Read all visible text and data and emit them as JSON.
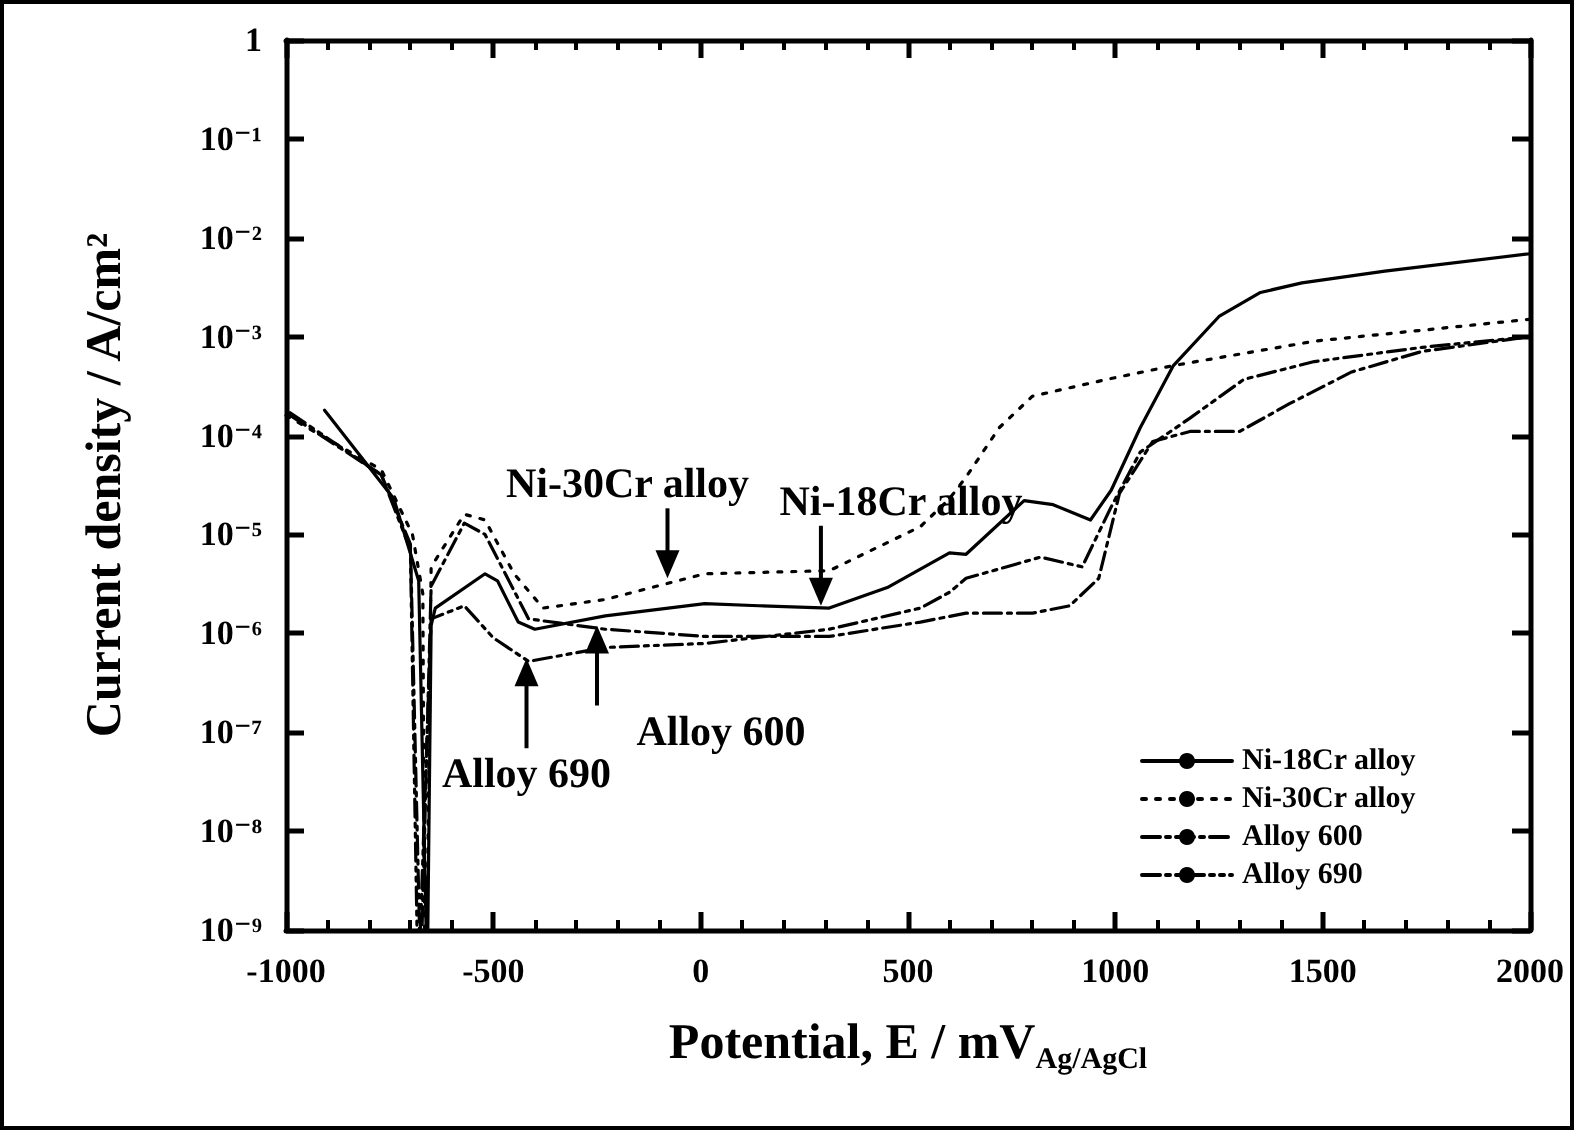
{
  "chart_data": {
    "type": "line",
    "xlabel": "Potential, E / mV$_{Ag/AgCl}$",
    "ylabel": "Current density / A/cm²",
    "xlim": [
      -1000,
      2000
    ],
    "xticks": [
      -1000,
      -500,
      0,
      500,
      1000,
      1500,
      2000
    ],
    "ylim": [
      1e-09,
      1
    ],
    "log": "y",
    "yticks": [
      {
        "value": 1e-09,
        "label": "10⁻⁹"
      },
      {
        "value": 1e-08,
        "label": "10⁻⁸"
      },
      {
        "value": 1e-07,
        "label": "10⁻⁷"
      },
      {
        "value": 1e-06,
        "label": "10⁻⁶"
      },
      {
        "value": 1e-05,
        "label": "10⁻⁵"
      },
      {
        "value": 0.0001,
        "label": "10⁻⁴"
      },
      {
        "value": 0.001,
        "label": "10⁻³"
      },
      {
        "value": 0.01,
        "label": "10⁻²"
      },
      {
        "value": 0.1,
        "label": "10⁻¹"
      },
      {
        "value": 1,
        "label": "1"
      }
    ],
    "grid": false,
    "legend": "bottom right",
    "marker": "none",
    "series": [
      {
        "name": "Ni-18Cr alloy",
        "color": "#000000",
        "line_style": "solid",
        "x": [
          -907,
          -740,
          -680,
          -662,
          -658,
          -650,
          -640,
          -520,
          -490,
          -440,
          -400,
          -230,
          10,
          140,
          310,
          450,
          600,
          640,
          780,
          850,
          940,
          990,
          1060,
          1140,
          1250,
          1350,
          1450,
          1650,
          2000
        ],
        "values": [
          0.00018,
          2.3e-05,
          3.4e-06,
          1e-09,
          1e-09,
          1.2e-06,
          1.8e-06,
          4e-06,
          3.4e-06,
          1.3e-06,
          1.1e-06,
          1.5e-06,
          2e-06,
          1.9e-06,
          1.8e-06,
          2.9e-06,
          6.5e-06,
          6.3e-06,
          2.2e-05,
          2e-05,
          1.4e-05,
          2.8e-05,
          0.00012,
          0.00051,
          0.0016,
          0.0028,
          0.0035,
          0.0046,
          0.0069
        ]
      },
      {
        "name": "Ni-30Cr alloy",
        "color": "#000000",
        "line_style": "dotted",
        "x": [
          -1000,
          -770,
          -695,
          -670,
          -666,
          -660,
          -650,
          -570,
          -520,
          -450,
          -380,
          -230,
          10,
          310,
          530,
          600,
          640,
          720,
          800,
          980,
          1140,
          1480,
          2000
        ],
        "values": [
          0.00016,
          4.5e-05,
          1e-05,
          2.5e-06,
          1e-09,
          1e-09,
          4.7e-06,
          1.6e-05,
          1.4e-05,
          4e-06,
          1.8e-06,
          2.2e-06,
          4e-06,
          4.3e-06,
          1.2e-05,
          2.3e-05,
          3.8e-05,
          0.00012,
          0.00025,
          0.00037,
          0.00051,
          0.0009,
          0.0015
        ]
      },
      {
        "name": "Alloy 600",
        "color": "#000000",
        "line_style": "dashdot",
        "x": [
          -990,
          -770,
          -700,
          -678,
          -672,
          -650,
          -570,
          -520,
          -415,
          -230,
          10,
          310,
          530,
          640,
          800,
          890,
          960,
          1010,
          1090,
          1180,
          1300,
          1420,
          1570,
          1740,
          2000
        ],
        "values": [
          0.00016,
          4e-05,
          8e-06,
          1e-09,
          1e-09,
          3e-06,
          1.3e-05,
          1e-05,
          1.4e-06,
          1.1e-06,
          9.3e-07,
          9.3e-07,
          1.3e-06,
          1.6e-06,
          1.6e-06,
          1.9e-06,
          3.6e-06,
          2.6e-05,
          8.7e-05,
          0.00011,
          0.00011,
          0.00021,
          0.00044,
          0.00071,
          0.001
        ]
      },
      {
        "name": "Alloy 690",
        "color": "#000000",
        "line_style": "dashdotdot",
        "x": [
          -990,
          -770,
          -700,
          -684,
          -676,
          -650,
          -570,
          -500,
          -415,
          -230,
          10,
          310,
          530,
          600,
          640,
          820,
          920,
          990,
          1060,
          1180,
          1310,
          1480,
          1740,
          2000
        ],
        "values": [
          0.00017,
          4e-05,
          7e-06,
          1e-09,
          1e-09,
          1.4e-06,
          1.9e-06,
          9e-07,
          5.2e-07,
          7.2e-07,
          7.9e-07,
          1.1e-06,
          1.8e-06,
          2.6e-06,
          3.6e-06,
          5.9e-06,
          4.7e-06,
          1.9e-05,
          6.8e-05,
          0.00015,
          0.00037,
          0.00056,
          0.00078,
          0.001
        ]
      }
    ],
    "annotations": [
      {
        "text": "Ni-18Cr alloy",
        "x": 290,
        "y": 1.9e-06
      },
      {
        "text": "Ni-30Cr alloy",
        "x": -80,
        "y": 3.6e-06
      },
      {
        "text": "Alloy 600",
        "x": -250,
        "y": 1.2e-06
      },
      {
        "text": "Alloy 690",
        "x": -420,
        "y": 5.6e-07
      }
    ]
  }
}
